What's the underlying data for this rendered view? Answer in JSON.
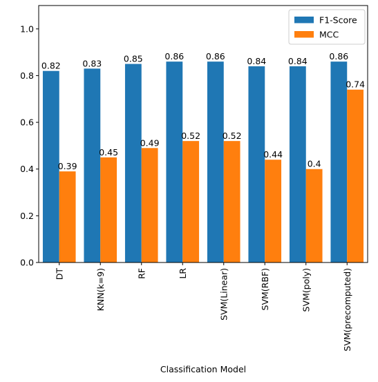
{
  "chart_data": {
    "type": "bar",
    "title": "",
    "xlabel": "Classification Model",
    "ylabel": "",
    "ylim": [
      0.0,
      1.1
    ],
    "yticks": [
      "0.0",
      "0.2",
      "0.4",
      "0.6",
      "0.8",
      "1.0"
    ],
    "categories": [
      "DT",
      "KNN(k=9)",
      "RF",
      "LR",
      "SVM(Linear)",
      "SVM(RBF)",
      "SVM(poly)",
      "SVM(precomputed)"
    ],
    "series": [
      {
        "name": "F1-Score",
        "color": "#1f77b4",
        "values": [
          0.82,
          0.83,
          0.85,
          0.86,
          0.86,
          0.84,
          0.84,
          0.86
        ],
        "labels": [
          "0.82",
          "0.83",
          "0.85",
          "0.86",
          "0.86",
          "0.84",
          "0.84",
          "0.86"
        ]
      },
      {
        "name": "MCC",
        "color": "#ff7f0e",
        "values": [
          0.39,
          0.45,
          0.49,
          0.52,
          0.52,
          0.44,
          0.4,
          0.74
        ],
        "labels": [
          "0.39",
          "0.45",
          "0.49",
          "0.52",
          "0.52",
          "0.44",
          "0.4",
          "0.74"
        ]
      }
    ],
    "legend": {
      "position": "upper right",
      "items": [
        "F1-Score",
        "MCC"
      ]
    },
    "grid": false
  }
}
